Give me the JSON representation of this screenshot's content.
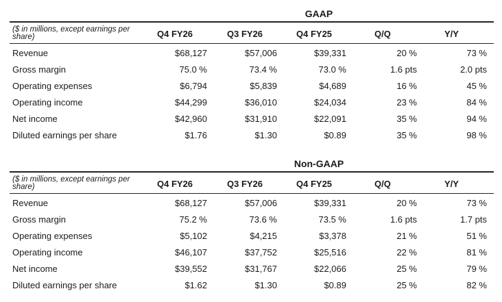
{
  "gaap": {
    "title": "GAAP",
    "note": "($ in millions, except earnings per share)",
    "columns": [
      "Q4 FY26",
      "Q3 FY26",
      "Q4 FY25",
      "Q/Q",
      "Y/Y"
    ],
    "rows": [
      {
        "label": "Revenue",
        "values": [
          "$68,127",
          "$57,006",
          "$39,331",
          "20 %",
          "73 %"
        ]
      },
      {
        "label": "Gross margin",
        "values": [
          "75.0 %",
          "73.4 %",
          "73.0 %",
          "1.6 pts",
          "2.0 pts"
        ]
      },
      {
        "label": "Operating expenses",
        "values": [
          "$6,794",
          "$5,839",
          "$4,689",
          "16 %",
          "45 %"
        ]
      },
      {
        "label": "Operating income",
        "values": [
          "$44,299",
          "$36,010",
          "$24,034",
          "23 %",
          "84 %"
        ]
      },
      {
        "label": "Net income",
        "values": [
          "$42,960",
          "$31,910",
          "$22,091",
          "35 %",
          "94 %"
        ]
      },
      {
        "label": "Diluted earnings per share",
        "values": [
          "$1.76",
          "$1.30",
          "$0.89",
          "35 %",
          "98 %"
        ]
      }
    ]
  },
  "non_gaap": {
    "title": "Non-GAAP",
    "note": "($ in millions, except earnings per share)",
    "columns": [
      "Q4 FY26",
      "Q3 FY26",
      "Q4 FY25",
      "Q/Q",
      "Y/Y"
    ],
    "rows": [
      {
        "label": "Revenue",
        "values": [
          "$68,127",
          "$57,006",
          "$39,331",
          "20 %",
          "73 %"
        ]
      },
      {
        "label": "Gross margin",
        "values": [
          "75.2 %",
          "73.6 %",
          "73.5 %",
          "1.6 pts",
          "1.7 pts"
        ]
      },
      {
        "label": "Operating expenses",
        "values": [
          "$5,102",
          "$4,215",
          "$3,378",
          "21 %",
          "51 %"
        ]
      },
      {
        "label": "Operating income",
        "values": [
          "$46,107",
          "$37,752",
          "$25,516",
          "22 %",
          "81 %"
        ]
      },
      {
        "label": "Net income",
        "values": [
          "$39,552",
          "$31,767",
          "$22,066",
          "25 %",
          "79 %"
        ]
      },
      {
        "label": "Diluted earnings per share",
        "values": [
          "$1.62",
          "$1.30",
          "$0.89",
          "25 %",
          "82 %"
        ]
      }
    ]
  }
}
